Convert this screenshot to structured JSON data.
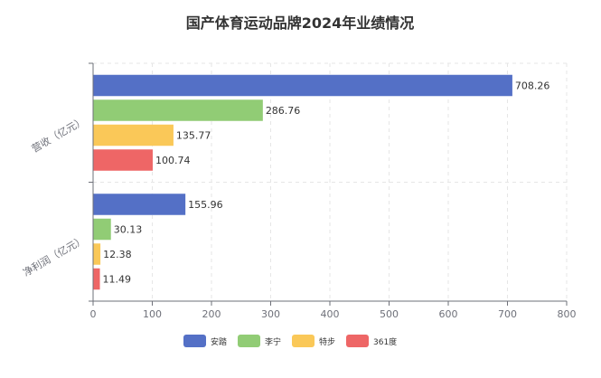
{
  "chart_data": {
    "type": "bar",
    "orientation": "horizontal",
    "title": "国产体育运动品牌2024年业绩情况",
    "categories": [
      "营收（亿元）",
      "净利润（亿元）"
    ],
    "series": [
      {
        "name": "安踏",
        "color": "#5470c6",
        "values": [
          708.26,
          155.96
        ],
        "labels": [
          "708.26",
          "155.96"
        ]
      },
      {
        "name": "李宁",
        "color": "#91cc75",
        "values": [
          286.76,
          30.13
        ],
        "labels": [
          "286.76",
          "30.13"
        ]
      },
      {
        "name": "特步",
        "color": "#fac858",
        "values": [
          135.77,
          12.38
        ],
        "labels": [
          "135.77",
          "12.38"
        ]
      },
      {
        "name": "361度",
        "color": "#ee6666",
        "values": [
          100.74,
          11.49
        ],
        "labels": [
          "100.74",
          "11.49"
        ]
      }
    ],
    "xlim": [
      0,
      800
    ],
    "xticks": [
      "0",
      "100",
      "200",
      "300",
      "400",
      "500",
      "600",
      "700",
      "800"
    ],
    "grid": true,
    "legend_position": "bottom"
  }
}
